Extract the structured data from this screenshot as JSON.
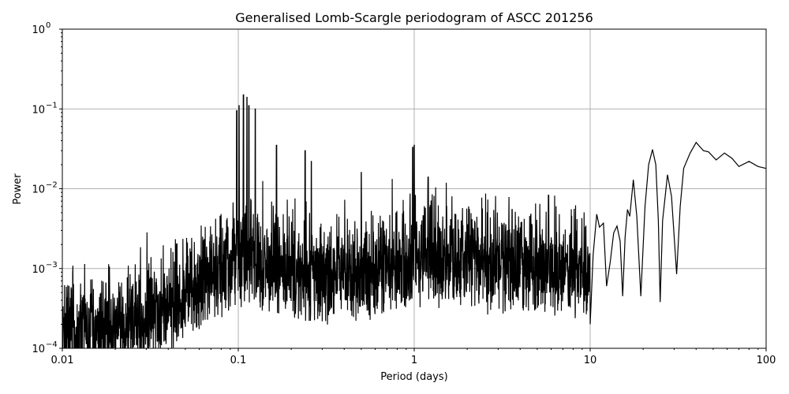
{
  "chart_data": {
    "type": "line",
    "title": "Generalised Lomb-Scargle periodogram of ASCC 201256",
    "xlabel": "Period (days)",
    "ylabel": "Power",
    "xscale": "log",
    "yscale": "log",
    "xlim": [
      0.01,
      100
    ],
    "ylim": [
      0.0001,
      1
    ],
    "grid": true,
    "legend": null,
    "x_ticks": [
      0.01,
      0.1,
      1,
      10,
      100
    ],
    "x_tick_labels": [
      "0.01",
      "0.1",
      "1",
      "10",
      "100"
    ],
    "y_ticks": [
      0.0001,
      0.001,
      0.01,
      0.1,
      1
    ],
    "y_tick_labels": [
      "10^-4",
      "10^-3",
      "10^-2",
      "10^-1",
      "10^0"
    ],
    "series": [
      {
        "name": "GLS power",
        "color": "#000000",
        "notable_peaks": [
          {
            "period": 0.107,
            "power": 0.15
          },
          {
            "period": 0.112,
            "power": 0.14
          },
          {
            "period": 0.098,
            "power": 0.095
          },
          {
            "period": 0.101,
            "power": 0.11
          },
          {
            "period": 0.115,
            "power": 0.11
          },
          {
            "period": 0.125,
            "power": 0.1
          },
          {
            "period": 0.165,
            "power": 0.035
          },
          {
            "period": 0.24,
            "power": 0.03
          },
          {
            "period": 0.26,
            "power": 0.022
          },
          {
            "period": 0.5,
            "power": 0.016
          },
          {
            "period": 0.98,
            "power": 0.033
          },
          {
            "period": 1.0,
            "power": 0.035
          },
          {
            "period": 1.2,
            "power": 0.014
          },
          {
            "period": 3.6,
            "power": 0.0055
          },
          {
            "period": 5.8,
            "power": 0.0083
          },
          {
            "period": 11,
            "power": 0.0048
          },
          {
            "period": 17.6,
            "power": 0.013
          },
          {
            "period": 22.6,
            "power": 0.031
          },
          {
            "period": 27.5,
            "power": 0.015
          },
          {
            "period": 40,
            "power": 0.038
          },
          {
            "period": 58,
            "power": 0.028
          },
          {
            "period": 80,
            "power": 0.022
          },
          {
            "period": 100,
            "power": 0.018
          }
        ],
        "smooth_tail": [
          [
            10.0,
            0.0002
          ],
          [
            10.4,
            0.0015
          ],
          [
            10.9,
            0.0048
          ],
          [
            11.3,
            0.0033
          ],
          [
            11.9,
            0.0037
          ],
          [
            12.4,
            0.0006
          ],
          [
            13.0,
            0.0012
          ],
          [
            13.6,
            0.0028
          ],
          [
            14.2,
            0.0034
          ],
          [
            14.8,
            0.0022
          ],
          [
            15.3,
            0.00045
          ],
          [
            15.8,
            0.0025
          ],
          [
            16.3,
            0.0055
          ],
          [
            16.8,
            0.0045
          ],
          [
            17.6,
            0.013
          ],
          [
            18.4,
            0.0045
          ],
          [
            19.4,
            0.00045
          ],
          [
            20.5,
            0.006
          ],
          [
            21.5,
            0.02
          ],
          [
            22.6,
            0.031
          ],
          [
            23.6,
            0.02
          ],
          [
            24.4,
            0.004
          ],
          [
            25.0,
            0.00038
          ],
          [
            25.8,
            0.004
          ],
          [
            27.5,
            0.015
          ],
          [
            29.0,
            0.008
          ],
          [
            31.0,
            0.00085
          ],
          [
            32.5,
            0.006
          ],
          [
            34.0,
            0.018
          ],
          [
            37.0,
            0.028
          ],
          [
            40.0,
            0.038
          ],
          [
            44.0,
            0.03
          ],
          [
            47.0,
            0.029
          ],
          [
            52.0,
            0.023
          ],
          [
            58.0,
            0.028
          ],
          [
            64.0,
            0.024
          ],
          [
            70.0,
            0.019
          ],
          [
            80.0,
            0.022
          ],
          [
            90.0,
            0.019
          ],
          [
            100.0,
            0.018
          ]
        ]
      }
    ]
  }
}
